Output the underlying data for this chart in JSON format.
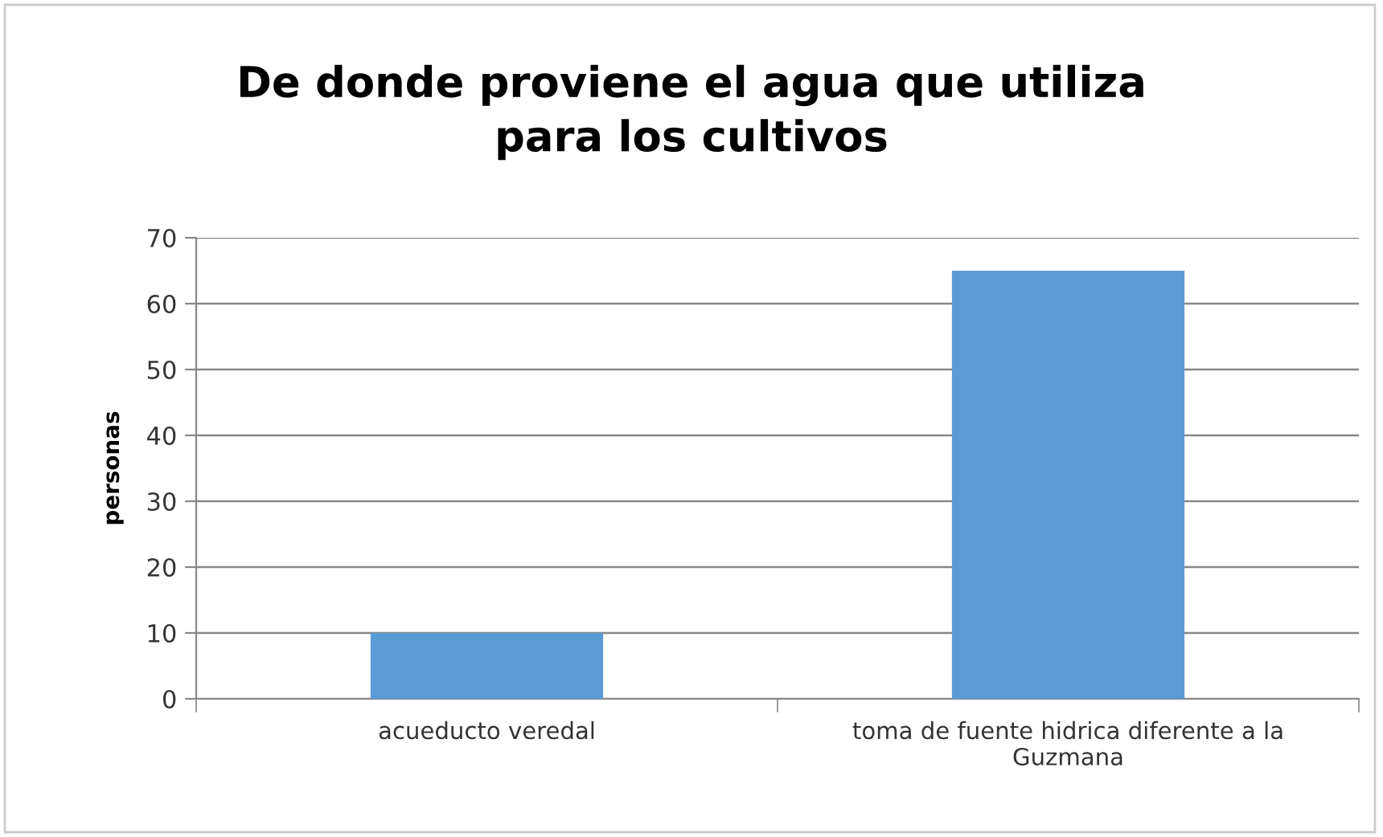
{
  "chart_data": {
    "type": "bar",
    "title": "De donde proviene el agua que utiliza\npara los cultivos",
    "ylabel": "personas",
    "categories": [
      "acueducto veredal",
      "toma de fuente hidrica diferente a la\nGuzmana"
    ],
    "values": [
      10,
      65
    ],
    "color": "#5b9bd5",
    "ylim": [
      0,
      70
    ],
    "yticks": [
      0,
      10,
      20,
      30,
      40,
      50,
      60,
      70
    ],
    "grid": "y"
  }
}
